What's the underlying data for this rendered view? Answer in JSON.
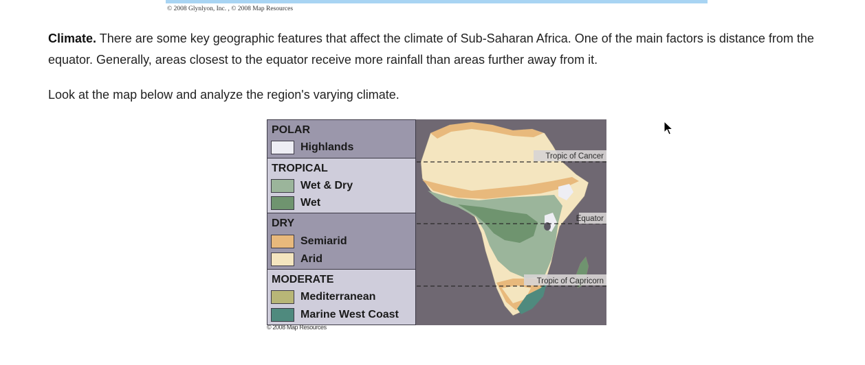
{
  "top_credit": "© 2008 Glynlyon, Inc. , © 2008 Map Resources",
  "paragraph1": {
    "lead": "Climate.",
    "text": " There are some key geographic features that affect the climate of Sub-Saharan Africa. One of the main factors is distance from the equator. Generally, areas closest to the equator receive more rainfall than areas further away from it."
  },
  "paragraph2": "Look at the map below and analyze the region's varying climate.",
  "legend": {
    "polar": {
      "heading": "POLAR",
      "items": [
        {
          "label": "Highlands",
          "color": "#eeeef4"
        }
      ]
    },
    "tropical": {
      "heading": "TROPICAL",
      "items": [
        {
          "label": "Wet & Dry",
          "color": "#9bb59b"
        },
        {
          "label": "Wet",
          "color": "#6f946f"
        }
      ]
    },
    "dry": {
      "heading": "DRY",
      "items": [
        {
          "label": "Semiarid",
          "color": "#e8b97c"
        },
        {
          "label": "Arid",
          "color": "#f4e5bf"
        }
      ]
    },
    "moderate": {
      "heading": "MODERATE",
      "items": [
        {
          "label": "Mediterranean",
          "color": "#b8b677"
        },
        {
          "label": "Marine West Coast",
          "color": "#4f8a7e"
        }
      ]
    }
  },
  "map_labels": {
    "tropic_cancer": "Tropic of Cancer",
    "equator": "Equator",
    "tropic_capricorn": "Tropic of Capricorn"
  },
  "map_credit": "© 2008 Map Resources"
}
